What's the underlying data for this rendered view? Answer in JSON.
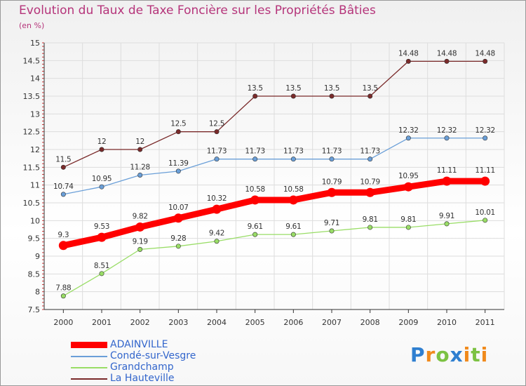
{
  "title": "Evolution du Taux de Taxe Foncière sur les Propriétés Bâties",
  "subtitle": "(en %)",
  "chart_data": {
    "type": "line",
    "title": "Evolution du Taux de Taxe Foncière sur les Propriétés Bâties",
    "subtitle": "(en %)",
    "xlabel": "",
    "ylabel": "",
    "x": [
      "2000",
      "2001",
      "2002",
      "2003",
      "2004",
      "2005",
      "2006",
      "2007",
      "2008",
      "2009",
      "2010",
      "2011"
    ],
    "ylim": [
      7.5,
      15
    ],
    "yticks": [
      "7.5",
      "8",
      "8.5",
      "9",
      "9.5",
      "10",
      "10.5",
      "11",
      "11.5",
      "12",
      "12.5",
      "13",
      "13.5",
      "14",
      "14.5",
      "15"
    ],
    "grid": true,
    "legend_position": "bottom-left",
    "series": [
      {
        "name": "ADAINVILLE",
        "color": "#ff0000",
        "values": [
          9.3,
          9.53,
          9.82,
          10.07,
          10.32,
          10.58,
          10.58,
          10.79,
          10.79,
          10.95,
          11.11,
          11.11
        ]
      },
      {
        "name": "Condé-sur-Vesgre",
        "color": "#6a9fd8",
        "values": [
          10.74,
          10.95,
          11.28,
          11.39,
          11.73,
          11.73,
          11.73,
          11.73,
          11.73,
          12.32,
          12.32,
          12.32
        ]
      },
      {
        "name": "Grandchamp",
        "color": "#99dd66",
        "values": [
          7.88,
          8.51,
          9.19,
          9.28,
          9.42,
          9.61,
          9.61,
          9.71,
          9.81,
          9.81,
          9.91,
          10.01
        ]
      },
      {
        "name": "La Hauteville",
        "color": "#7a2a2a",
        "values": [
          11.5,
          12,
          12,
          12.5,
          12.5,
          13.5,
          13.5,
          13.5,
          13.5,
          14.48,
          14.48,
          14.48
        ]
      }
    ]
  },
  "legend": [
    {
      "label": "ADAINVILLE",
      "color": "#ff0000"
    },
    {
      "label": "Condé-sur-Vesgre",
      "color": "#6a9fd8"
    },
    {
      "label": "Grandchamp",
      "color": "#99dd66"
    },
    {
      "label": "La Hauteville",
      "color": "#7a2a2a"
    }
  ],
  "logo": {
    "text": "Proxiti",
    "letters": [
      {
        "ch": "P",
        "color": "#2f7fd0"
      },
      {
        "ch": "r",
        "color": "#f08a1c"
      },
      {
        "ch": "o",
        "color": "#7cc242"
      },
      {
        "ch": "x",
        "color": "#2f7fd0"
      },
      {
        "ch": "i",
        "color": "#f08a1c"
      },
      {
        "ch": "t",
        "color": "#7cc242"
      },
      {
        "ch": "i",
        "color": "#f08a1c"
      }
    ]
  }
}
